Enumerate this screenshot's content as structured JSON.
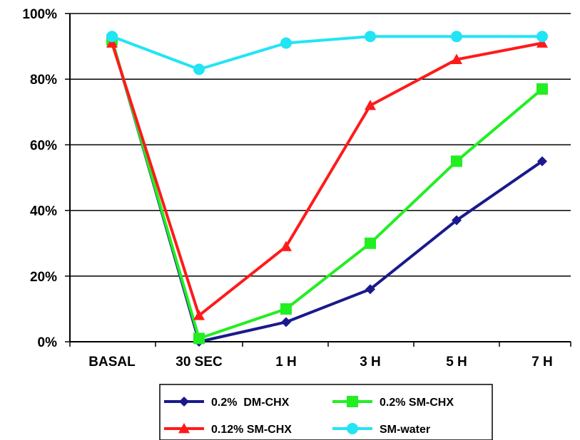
{
  "chart_data": {
    "type": "line",
    "categories": [
      "BASAL",
      "30 SEC",
      "1 H",
      "3 H",
      "5 H",
      "7 H"
    ],
    "ylim": [
      0,
      100
    ],
    "yticks": [
      0,
      20,
      40,
      60,
      80,
      100
    ],
    "ytick_labels": [
      "0%",
      "20%",
      "40%",
      "60%",
      "80%",
      "100%"
    ],
    "grid": true,
    "legend_position": "bottom",
    "series": [
      {
        "name": "0.2%  DM-CHX",
        "color": "#1a1a8c",
        "marker": "diamond",
        "values": [
          92,
          0,
          6,
          16,
          37,
          55
        ]
      },
      {
        "name": "0.2% SM-CHX",
        "color": "#22ee22",
        "marker": "square",
        "values": [
          92,
          1,
          10,
          30,
          55,
          77
        ]
      },
      {
        "name": "0.12% SM-CHX",
        "color": "#ff1a1a",
        "marker": "triangle",
        "values": [
          91,
          8,
          29,
          72,
          86,
          91
        ]
      },
      {
        "name": "SM-water",
        "color": "#22e4f4",
        "marker": "circle",
        "values": [
          93,
          83,
          91,
          93,
          93,
          93
        ]
      }
    ]
  }
}
